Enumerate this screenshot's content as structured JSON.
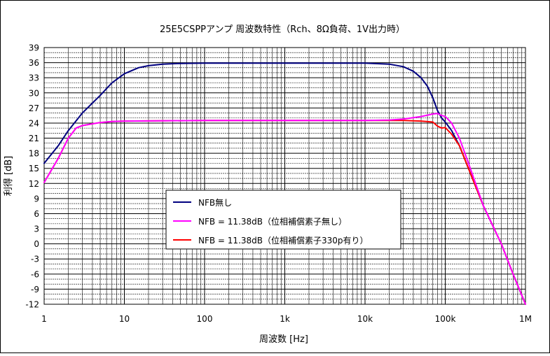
{
  "chart_data": {
    "type": "line",
    "title": "25E5CSPPアンプ 周波数特性（Rch、8Ω負荷、1V出力時）",
    "xlabel": "周波数 [Hz]",
    "ylabel": "利得 [dB]",
    "xscale": "log",
    "xlim": [
      1,
      1000000
    ],
    "ylim": [
      -12,
      39
    ],
    "grid": true,
    "legend_position": "center-right",
    "x_ticks": [
      {
        "value": 1,
        "label": "1"
      },
      {
        "value": 10,
        "label": "10"
      },
      {
        "value": 100,
        "label": "100"
      },
      {
        "value": 1000,
        "label": "1k"
      },
      {
        "value": 10000,
        "label": "10k"
      },
      {
        "value": 100000,
        "label": "100k"
      },
      {
        "value": 1000000,
        "label": "1M"
      }
    ],
    "y_ticks": [
      39,
      36,
      33,
      30,
      27,
      24,
      21,
      18,
      15,
      12,
      9,
      6,
      3,
      0,
      -3,
      -6,
      -9,
      -12
    ],
    "series": [
      {
        "name": "NFB無し",
        "color": "#000080",
        "points": [
          [
            1,
            16
          ],
          [
            1.5,
            19.5
          ],
          [
            2,
            22.5
          ],
          [
            3,
            26
          ],
          [
            5,
            29.5
          ],
          [
            7,
            32
          ],
          [
            10,
            33.8
          ],
          [
            15,
            35
          ],
          [
            20,
            35.4
          ],
          [
            30,
            35.7
          ],
          [
            50,
            35.85
          ],
          [
            100,
            35.9
          ],
          [
            1000,
            35.9
          ],
          [
            10000,
            35.9
          ],
          [
            20000,
            35.7
          ],
          [
            30000,
            35.2
          ],
          [
            40000,
            34.3
          ],
          [
            50000,
            33
          ],
          [
            60000,
            31.3
          ],
          [
            70000,
            29
          ],
          [
            80000,
            26.5
          ],
          [
            90000,
            25
          ],
          [
            100000,
            24.2
          ],
          [
            120000,
            22.5
          ],
          [
            150000,
            19.5
          ],
          [
            200000,
            14.5
          ],
          [
            300000,
            7.5
          ],
          [
            500000,
            0
          ],
          [
            700000,
            -6
          ],
          [
            1000000,
            -12
          ]
        ]
      },
      {
        "name": "NFB = 11.38dB（位相補償素子無し）",
        "color": "#ff00ff",
        "points": [
          [
            1,
            12.2
          ],
          [
            1.5,
            17
          ],
          [
            2,
            21
          ],
          [
            2.5,
            23
          ],
          [
            3,
            23.5
          ],
          [
            5,
            24.1
          ],
          [
            7,
            24.3
          ],
          [
            10,
            24.4
          ],
          [
            100,
            24.5
          ],
          [
            1000,
            24.5
          ],
          [
            10000,
            24.5
          ],
          [
            20000,
            24.6
          ],
          [
            30000,
            24.8
          ],
          [
            50000,
            25.3
          ],
          [
            70000,
            25.8
          ],
          [
            80000,
            25.9
          ],
          [
            90000,
            25.5
          ],
          [
            100000,
            25.3
          ],
          [
            120000,
            24
          ],
          [
            150000,
            21
          ],
          [
            200000,
            15.5
          ],
          [
            300000,
            7.5
          ],
          [
            500000,
            0
          ],
          [
            700000,
            -6
          ],
          [
            1000000,
            -12
          ]
        ]
      },
      {
        "name": "NFB = 11.38dB（位相補償素子330p有り）",
        "color": "#ff0000",
        "points": [
          [
            1,
            12.2
          ],
          [
            1.5,
            17
          ],
          [
            2,
            21
          ],
          [
            2.5,
            23
          ],
          [
            3,
            23.5
          ],
          [
            5,
            24.1
          ],
          [
            7,
            24.3
          ],
          [
            10,
            24.4
          ],
          [
            100,
            24.5
          ],
          [
            1000,
            24.5
          ],
          [
            10000,
            24.5
          ],
          [
            30000,
            24.5
          ],
          [
            50000,
            24.4
          ],
          [
            70000,
            24.2
          ],
          [
            80000,
            23.4
          ],
          [
            90000,
            23
          ],
          [
            100000,
            23.1
          ],
          [
            120000,
            21.8
          ],
          [
            150000,
            19.5
          ],
          [
            200000,
            14.5
          ],
          [
            300000,
            7.5
          ],
          [
            500000,
            0
          ],
          [
            700000,
            -6
          ],
          [
            1000000,
            -12
          ]
        ]
      }
    ]
  }
}
